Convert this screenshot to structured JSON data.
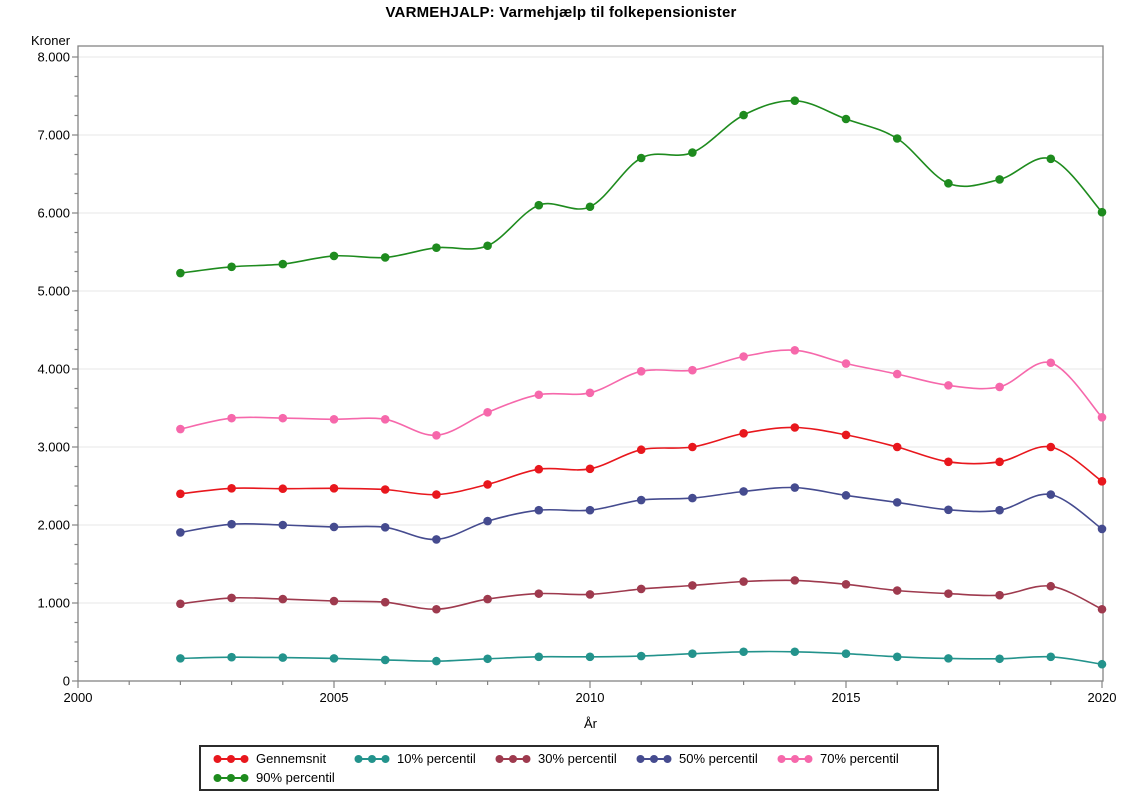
{
  "title": "VARMEHJALP: Varmehjælp til folkepensionister",
  "chart_data": {
    "type": "line",
    "title": "VARMEHJALP: Varmehjælp til folkepensionister",
    "xlabel": "År",
    "ylabel": "Kroner",
    "xlim": [
      2000,
      2020
    ],
    "ylim": [
      0,
      8000
    ],
    "grid": "horizontal-major-only",
    "legend_position": "bottom",
    "x_tick_values": [
      2000,
      2005,
      2010,
      2015,
      2020
    ],
    "x_tick_labels": [
      "2000",
      "2005",
      "2010",
      "2015",
      "2020"
    ],
    "x_minor_tick_step": 1,
    "y_tick_values": [
      8000,
      7000,
      6000,
      5000,
      4000,
      3000,
      2000,
      1000,
      0
    ],
    "y_tick_labels": [
      "8.000",
      "7.000",
      "6.000",
      "5.000",
      "4.000",
      "3.000",
      "2.000",
      "1.000",
      "0"
    ],
    "y_minor_tick_step": 250,
    "x": [
      2002,
      2003,
      2004,
      2005,
      2006,
      2007,
      2008,
      2009,
      2010,
      2011,
      2012,
      2013,
      2014,
      2015,
      2016,
      2017,
      2018,
      2019,
      2020
    ],
    "series": [
      {
        "name": "Gennemsnit",
        "color": "#e8171d",
        "values": [
          2400,
          2470,
          2465,
          2470,
          2455,
          2390,
          2520,
          2715,
          2720,
          2965,
          3000,
          3175,
          3250,
          3155,
          3000,
          2810,
          2810,
          3000,
          2560
        ]
      },
      {
        "name": "10% percentil",
        "color": "#23938c",
        "values": [
          290,
          305,
          300,
          290,
          270,
          255,
          285,
          310,
          310,
          320,
          350,
          375,
          375,
          350,
          310,
          290,
          285,
          310,
          215
        ]
      },
      {
        "name": "30% percentil",
        "color": "#9e3a4e",
        "values": [
          990,
          1065,
          1050,
          1025,
          1010,
          920,
          1050,
          1120,
          1110,
          1180,
          1225,
          1275,
          1290,
          1240,
          1160,
          1120,
          1100,
          1215,
          920
        ]
      },
      {
        "name": "50% percentil",
        "color": "#454b8f",
        "values": [
          1905,
          2010,
          2000,
          1975,
          1970,
          1815,
          2050,
          2190,
          2190,
          2320,
          2345,
          2430,
          2480,
          2380,
          2290,
          2195,
          2190,
          2390,
          1950
        ]
      },
      {
        "name": "70% percentil",
        "color": "#f668ab",
        "values": [
          3230,
          3370,
          3370,
          3355,
          3355,
          3150,
          3445,
          3670,
          3695,
          3970,
          3985,
          4160,
          4240,
          4070,
          3935,
          3790,
          3770,
          4080,
          3380
        ]
      },
      {
        "name": "90% percentil",
        "color": "#1e8b1e",
        "values": [
          5230,
          5310,
          5345,
          5450,
          5430,
          5555,
          5580,
          6100,
          6080,
          6705,
          6775,
          7255,
          7440,
          7205,
          6955,
          6380,
          6430,
          6695,
          6010
        ]
      }
    ]
  },
  "colors": {
    "background": "#ffffff",
    "gridline": "#e7e7e7",
    "frame": "#848484",
    "tick": "#848484",
    "text": "#000000",
    "legend_border": "#2b2b2b"
  }
}
